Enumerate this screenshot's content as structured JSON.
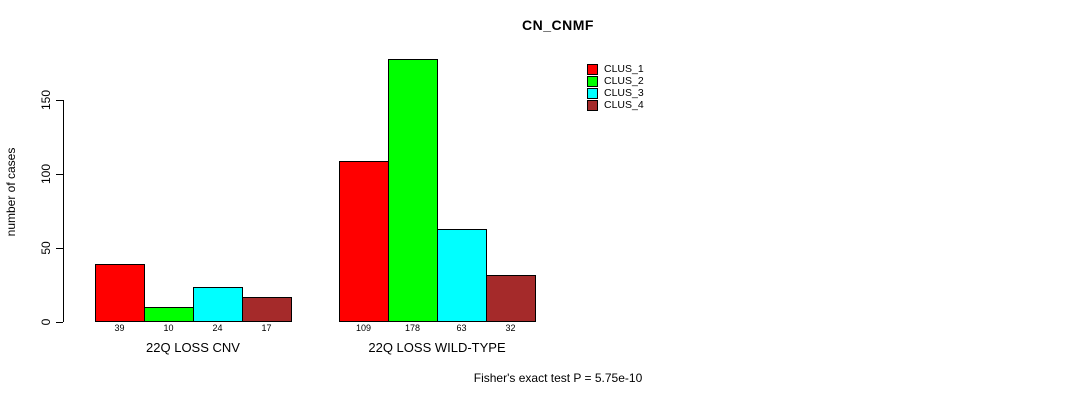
{
  "title": "CN_CNMF",
  "annotation": "Fisher's exact test P = 5.75e-10",
  "chart_data": {
    "type": "bar",
    "categories": [
      "22Q LOSS CNV",
      "22Q LOSS WILD-TYPE"
    ],
    "series": [
      {
        "name": "CLUS_1",
        "color": "#FF0000",
        "values": [
          39,
          109
        ]
      },
      {
        "name": "CLUS_2",
        "color": "#00FF00",
        "values": [
          10,
          178
        ]
      },
      {
        "name": "CLUS_3",
        "color": "#00FFFF",
        "values": [
          24,
          63
        ]
      },
      {
        "name": "CLUS_4",
        "color": "#A52A2A",
        "values": [
          17,
          32
        ]
      }
    ],
    "ylabel": "number of cases",
    "yticks": [
      0,
      50,
      100,
      150
    ],
    "ylim": [
      0,
      178
    ],
    "grid": false,
    "legend_position": "top-right",
    "bar_value_labels_shown": true
  }
}
